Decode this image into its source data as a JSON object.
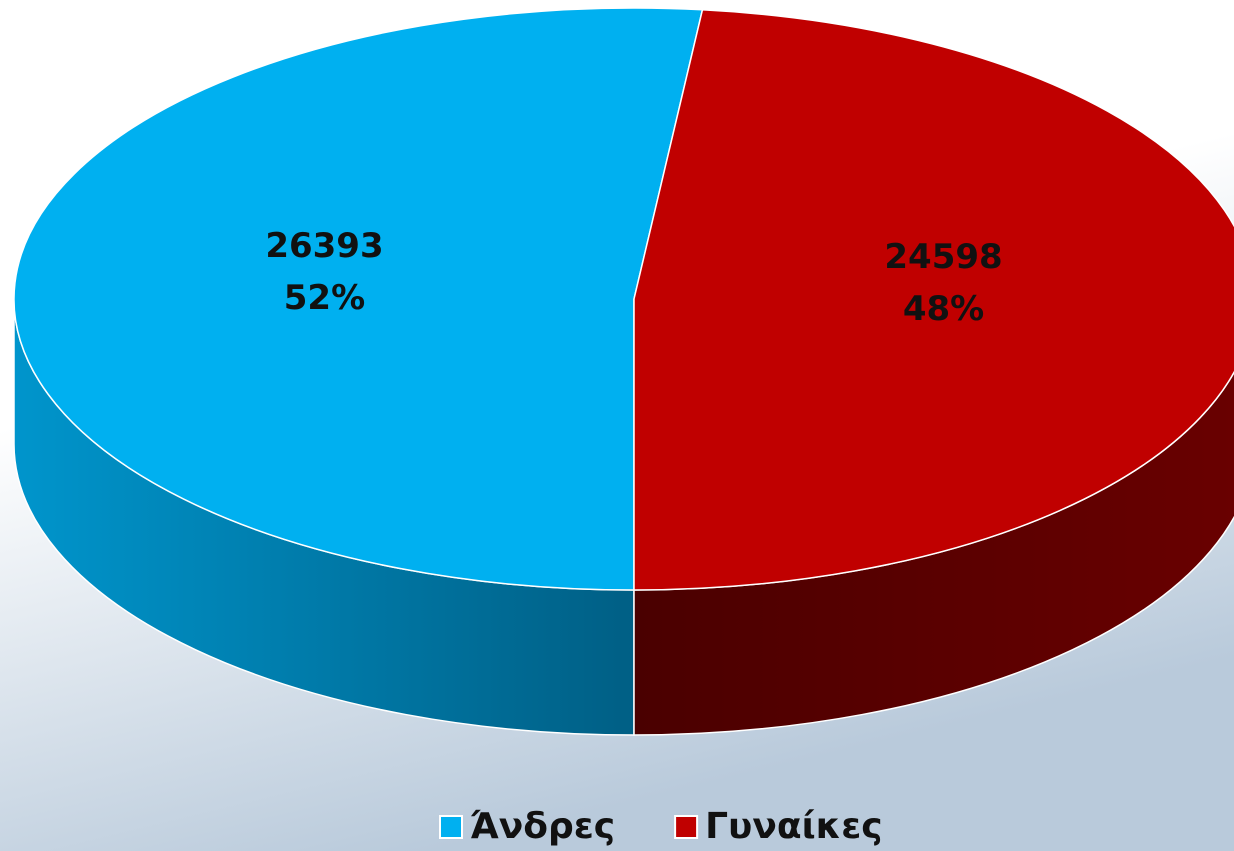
{
  "chart_data": {
    "type": "pie3d",
    "categories": [
      "Άνδρες",
      "Γυναίκες"
    ],
    "values": [
      26393,
      24598
    ],
    "percent_labels": [
      "52%",
      "48%"
    ],
    "colors": [
      "#00b0f0",
      "#c00000"
    ],
    "legend": "bottom"
  }
}
